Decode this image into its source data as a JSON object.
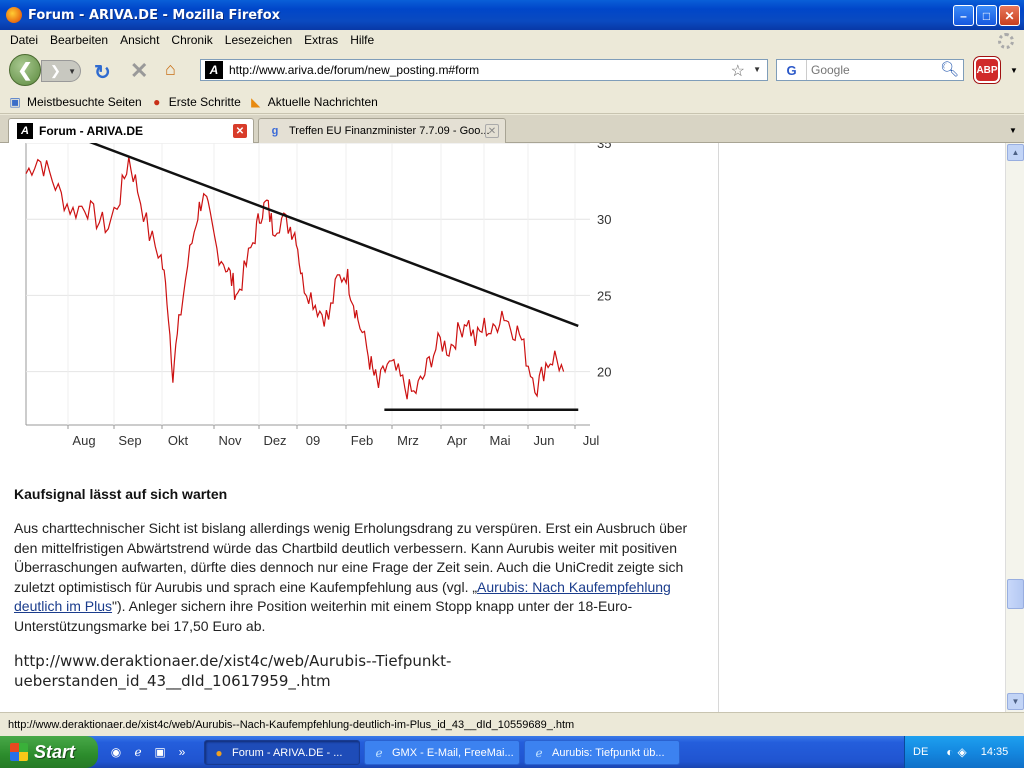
{
  "window": {
    "title": "Forum - ARIVA.DE - Mozilla Firefox",
    "minimize": "–",
    "maximize": "□",
    "close": "✕"
  },
  "menu": [
    "Datei",
    "Bearbeiten",
    "Ansicht",
    "Chronik",
    "Lesezeichen",
    "Extras",
    "Hilfe"
  ],
  "nav": {
    "url": "http://www.ariva.de/forum/new_posting.m#form",
    "search_placeholder": "Google",
    "search_engine": "G",
    "favicon": "A"
  },
  "bookmarks": [
    {
      "label": "Meistbesuchte Seiten",
      "icon": "folder-icon"
    },
    {
      "label": "Erste Schritte",
      "icon": "firefox-icon"
    },
    {
      "label": "Aktuelle Nachrichten",
      "icon": "rss-icon"
    }
  ],
  "tabs": [
    {
      "label": "Forum - ARIVA.DE",
      "active": true
    },
    {
      "label": "Treffen EU Finanzminister 7.7.09 - Goo...",
      "active": false
    }
  ],
  "chart_data": {
    "type": "line",
    "title": "",
    "xlabel": "",
    "ylabel": "",
    "x_tick_labels": [
      "Aug",
      "Sep",
      "Okt",
      "Nov",
      "Dez",
      "09",
      "Feb",
      "Mrz",
      "Apr",
      "Mai",
      "Jun",
      "Jul"
    ],
    "y_ticks": [
      20,
      25,
      30,
      35
    ],
    "ylim": [
      16.5,
      35
    ],
    "series_color": "#cc1111",
    "series": [
      {
        "points": [
          [
            0,
            33.0
          ],
          [
            0.4,
            34.0
          ],
          [
            0.8,
            33.0
          ],
          [
            1.2,
            31.5
          ],
          [
            1.6,
            30.5
          ],
          [
            2.0,
            31.0
          ],
          [
            2.4,
            30.0
          ],
          [
            2.8,
            29.5
          ],
          [
            3.2,
            31.5
          ],
          [
            3.5,
            34.0
          ],
          [
            3.8,
            32.0
          ],
          [
            4.2,
            29.0
          ],
          [
            4.6,
            27.5
          ],
          [
            4.8,
            25.0
          ],
          [
            5.0,
            20.0
          ],
          [
            5.2,
            23.0
          ],
          [
            5.5,
            27.0
          ],
          [
            5.8,
            30.0
          ],
          [
            6.0,
            31.5
          ],
          [
            6.2,
            30.5
          ],
          [
            6.5,
            28.0
          ],
          [
            6.8,
            27.0
          ],
          [
            7.0,
            26.0
          ],
          [
            7.2,
            25.0
          ],
          [
            7.5,
            27.0
          ],
          [
            7.8,
            29.0
          ],
          [
            8.0,
            30.5
          ],
          [
            8.2,
            31.0
          ],
          [
            8.4,
            29.5
          ],
          [
            8.7,
            30.0
          ],
          [
            9.0,
            29.5
          ],
          [
            9.2,
            29.0
          ],
          [
            9.4,
            26.0
          ],
          [
            9.7,
            25.0
          ],
          [
            10.0,
            24.0
          ],
          [
            10.3,
            23.5
          ],
          [
            10.6,
            26.0
          ],
          [
            10.9,
            26.5
          ],
          [
            11.1,
            25.0
          ],
          [
            11.3,
            23.5
          ],
          [
            11.6,
            21.5
          ],
          [
            11.8,
            20.0
          ],
          [
            12.0,
            19.0
          ],
          [
            12.3,
            20.5
          ],
          [
            12.6,
            20.0
          ],
          [
            12.9,
            19.0
          ],
          [
            13.2,
            18.5
          ],
          [
            13.5,
            19.5
          ],
          [
            13.8,
            21.0
          ],
          [
            14.1,
            22.0
          ],
          [
            14.4,
            21.5
          ],
          [
            14.7,
            22.5
          ],
          [
            15.0,
            23.5
          ],
          [
            15.3,
            22.0
          ],
          [
            15.6,
            23.0
          ],
          [
            15.9,
            22.5
          ],
          [
            16.2,
            24.0
          ],
          [
            16.5,
            23.0
          ],
          [
            16.8,
            22.5
          ],
          [
            17.1,
            20.5
          ],
          [
            17.4,
            19.0
          ],
          [
            17.7,
            20.5
          ],
          [
            18.0,
            21.0
          ],
          [
            18.3,
            20.0
          ]
        ]
      }
    ],
    "annotations": [
      {
        "type": "trendline",
        "from": [
          0.2,
          36.5
        ],
        "to": [
          18.8,
          23.0
        ]
      },
      {
        "type": "support",
        "from": [
          12.2,
          17.5
        ],
        "to": [
          18.8,
          17.5
        ]
      }
    ]
  },
  "article": {
    "heading": "Kaufsignal lässt auf sich warten",
    "p1": "Aus charttechnischer Sicht ist bislang allerdings wenig  Erholungsdrang zu verspüren. Erst ein Ausbruch über den mittelfristigen  Abwärtstrend würde das Chartbild deutlich verbessern. Kann Aurubis weiter mit  positiven Überraschungen aufwarten, dürfte dies dennoch nur eine Frage der Zeit  sein. Auch die UniCredit zeigte sich zuletzt optimistisch für Aurubis und sprach  eine Kaufempfehlung aus (vgl. „",
    "link": "Aurubis: Nach Kaufempfehlung deutlich im Plus",
    "p2": "\"). Anleger  sichern ihre Position weiterhin mit einem Stopp knapp unter der  18-Euro-Unterstützungsmarke bei 17,50 Euro ab.",
    "source_url": "http://www.deraktionaer.de/xist4c/web/Aurubis--Tiefpunkt-ueberstanden_id_43__dId_10617959_.htm"
  },
  "status": "http://www.deraktionaer.de/xist4c/web/Aurubis--Nach-Kaufempfehlung-deutlich-im-Plus_id_43__dId_10559689_.htm",
  "taskbar": {
    "start": "Start",
    "tasks": [
      {
        "label": "Forum - ARIVA.DE - ...",
        "active": true
      },
      {
        "label": "GMX - E-Mail, FreeMai...",
        "active": false
      },
      {
        "label": "Aurubis: Tiefpunkt üb...",
        "active": false
      }
    ],
    "lang": "DE",
    "clock": "14:35"
  }
}
